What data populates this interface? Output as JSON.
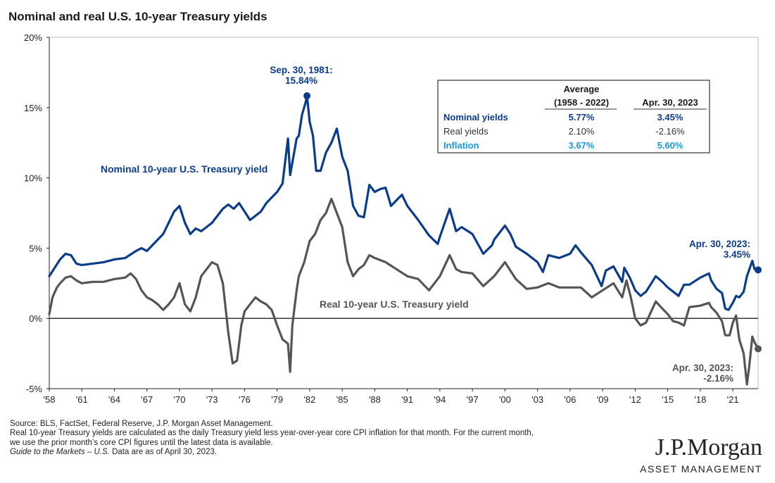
{
  "title": "Nominal and real U.S. 10-year Treasury yields",
  "colors": {
    "nominal": "#0b3c8c",
    "real": "#555555",
    "inflation": "#1a9ad6",
    "axis": "#222222"
  },
  "chart_data": {
    "type": "line",
    "title": "Nominal and real U.S. 10-year Treasury yields",
    "xlabel": "",
    "ylabel": "",
    "xlim": [
      1958,
      2023.33
    ],
    "ylim": [
      -5,
      20
    ],
    "grid": false,
    "y_ticks": [
      "-5%",
      "0%",
      "5%",
      "10%",
      "15%",
      "20%"
    ],
    "y_tick_values": [
      -5,
      0,
      5,
      10,
      15,
      20
    ],
    "x_ticks": [
      "'58",
      "'61",
      "'64",
      "'67",
      "'70",
      "'73",
      "'76",
      "'79",
      "'82",
      "'85",
      "'88",
      "'91",
      "'94",
      "'97",
      "'00",
      "'03",
      "'06",
      "'09",
      "'12",
      "'15",
      "'18",
      "'21"
    ],
    "x_tick_values": [
      1958,
      1961,
      1964,
      1967,
      1970,
      1973,
      1976,
      1979,
      1982,
      1985,
      1988,
      1991,
      1994,
      1997,
      2000,
      2003,
      2006,
      2009,
      2012,
      2015,
      2018,
      2021
    ],
    "series": [
      {
        "name": "Nominal 10-year U.S. Treasury yield",
        "x": [
          1958.0,
          1958.5,
          1959.0,
          1959.5,
          1960.0,
          1960.5,
          1961.0,
          1962.0,
          1963.0,
          1964.0,
          1965.0,
          1966.0,
          1966.5,
          1967.0,
          1968.0,
          1968.5,
          1969.0,
          1969.5,
          1970.0,
          1970.5,
          1971.0,
          1971.5,
          1972.0,
          1973.0,
          1973.5,
          1974.0,
          1974.5,
          1975.0,
          1975.5,
          1976.0,
          1976.5,
          1977.0,
          1977.5,
          1978.0,
          1978.5,
          1979.0,
          1979.5,
          1980.0,
          1980.2,
          1980.5,
          1980.8,
          1981.0,
          1981.3,
          1981.6,
          1981.75,
          1982.0,
          1982.3,
          1982.6,
          1983.0,
          1983.5,
          1984.0,
          1984.5,
          1985.0,
          1985.5,
          1986.0,
          1986.5,
          1987.0,
          1987.5,
          1988.0,
          1988.5,
          1989.0,
          1989.5,
          1990.0,
          1990.5,
          1991.0,
          1992.0,
          1993.0,
          1993.8,
          1994.0,
          1994.9,
          1995.5,
          1996.0,
          1997.0,
          1998.0,
          1998.8,
          1999.0,
          2000.0,
          2000.5,
          2001.0,
          2002.0,
          2003.0,
          2003.5,
          2004.0,
          2005.0,
          2006.0,
          2006.5,
          2007.0,
          2008.0,
          2008.9,
          2009.3,
          2010.0,
          2010.8,
          2011.0,
          2011.5,
          2012.0,
          2012.5,
          2013.0,
          2013.9,
          2014.5,
          2015.0,
          2016.0,
          2016.5,
          2017.0,
          2018.0,
          2018.8,
          2019.0,
          2019.5,
          2020.0,
          2020.3,
          2020.6,
          2021.0,
          2021.3,
          2021.6,
          2022.0,
          2022.3,
          2022.8,
          2023.0,
          2023.33
        ],
        "values": [
          3.0,
          3.6,
          4.2,
          4.6,
          4.5,
          3.9,
          3.8,
          3.9,
          4.0,
          4.2,
          4.3,
          4.8,
          5.0,
          4.8,
          5.6,
          6.0,
          6.8,
          7.6,
          8.0,
          6.8,
          6.0,
          6.4,
          6.2,
          6.8,
          7.3,
          7.8,
          8.1,
          7.8,
          8.2,
          7.6,
          7.0,
          7.3,
          7.6,
          8.2,
          8.6,
          9.0,
          9.6,
          12.8,
          10.2,
          11.5,
          12.8,
          13.0,
          14.5,
          15.3,
          15.84,
          14.0,
          13.0,
          10.5,
          10.5,
          11.8,
          12.5,
          13.5,
          11.5,
          10.5,
          8.0,
          7.3,
          7.2,
          9.5,
          9.0,
          9.2,
          9.3,
          8.0,
          8.4,
          8.8,
          8.0,
          7.0,
          5.9,
          5.3,
          5.8,
          7.8,
          6.2,
          6.5,
          6.0,
          4.6,
          5.2,
          5.6,
          6.6,
          6.0,
          5.1,
          4.6,
          4.0,
          3.3,
          4.5,
          4.3,
          4.6,
          5.2,
          4.7,
          3.8,
          2.3,
          3.4,
          3.7,
          2.6,
          3.6,
          2.9,
          2.0,
          1.6,
          1.9,
          3.0,
          2.6,
          2.2,
          1.6,
          2.4,
          2.4,
          2.9,
          3.2,
          2.7,
          2.1,
          1.8,
          0.7,
          0.6,
          1.1,
          1.6,
          1.5,
          1.9,
          3.0,
          4.1,
          3.5,
          3.45
        ]
      },
      {
        "name": "Real 10-year U.S. Treasury yield",
        "x": [
          1958.0,
          1958.3,
          1958.7,
          1959.0,
          1959.5,
          1960.0,
          1960.5,
          1961.0,
          1962.0,
          1963.0,
          1964.0,
          1965.0,
          1965.5,
          1966.0,
          1966.5,
          1967.0,
          1967.5,
          1968.0,
          1968.5,
          1969.0,
          1969.5,
          1970.0,
          1970.5,
          1971.0,
          1971.5,
          1972.0,
          1972.5,
          1973.0,
          1973.5,
          1974.0,
          1974.5,
          1974.9,
          1975.3,
          1975.7,
          1976.0,
          1976.5,
          1977.0,
          1977.5,
          1978.0,
          1978.5,
          1979.0,
          1979.5,
          1980.0,
          1980.2,
          1980.4,
          1980.8,
          1981.0,
          1981.5,
          1982.0,
          1982.5,
          1983.0,
          1983.5,
          1984.0,
          1984.5,
          1985.0,
          1985.5,
          1986.0,
          1986.5,
          1987.0,
          1987.5,
          1988.0,
          1989.0,
          1990.0,
          1991.0,
          1992.0,
          1993.0,
          1994.0,
          1994.9,
          1995.5,
          1996.0,
          1997.0,
          1998.0,
          1999.0,
          2000.0,
          2001.0,
          2002.0,
          2003.0,
          2004.0,
          2005.0,
          2006.0,
          2007.0,
          2008.0,
          2009.0,
          2010.0,
          2010.8,
          2011.2,
          2011.6,
          2012.0,
          2012.5,
          2013.0,
          2013.9,
          2014.5,
          2015.0,
          2015.5,
          2016.0,
          2016.5,
          2017.0,
          2018.0,
          2018.8,
          2019.0,
          2019.5,
          2020.0,
          2020.3,
          2020.7,
          2021.0,
          2021.3,
          2021.6,
          2022.0,
          2022.3,
          2022.5,
          2022.8,
          2023.0,
          2023.33
        ],
        "values": [
          0.3,
          1.5,
          2.2,
          2.5,
          2.9,
          3.0,
          2.7,
          2.5,
          2.6,
          2.6,
          2.8,
          2.9,
          3.2,
          2.8,
          2.0,
          1.5,
          1.3,
          1.0,
          0.6,
          1.0,
          1.5,
          2.5,
          1.0,
          0.5,
          1.5,
          3.0,
          3.5,
          4.0,
          3.8,
          2.5,
          -1.0,
          -3.2,
          -3.0,
          -0.5,
          0.5,
          1.0,
          1.5,
          1.2,
          1.0,
          0.6,
          -0.5,
          -1.5,
          -1.8,
          -3.8,
          -0.5,
          2.0,
          3.0,
          4.0,
          5.5,
          6.0,
          7.0,
          7.5,
          8.5,
          7.5,
          6.5,
          4.0,
          3.0,
          3.5,
          3.8,
          4.5,
          4.3,
          4.0,
          3.5,
          3.0,
          2.8,
          2.0,
          3.0,
          4.5,
          3.5,
          3.3,
          3.2,
          2.3,
          3.0,
          4.0,
          2.8,
          2.1,
          2.2,
          2.5,
          2.2,
          2.2,
          2.2,
          1.5,
          2.0,
          2.5,
          1.5,
          2.7,
          1.5,
          0.0,
          -0.5,
          -0.3,
          1.2,
          0.7,
          0.3,
          -0.2,
          -0.3,
          -0.5,
          0.8,
          0.9,
          1.1,
          0.8,
          0.4,
          -0.2,
          -1.2,
          -1.2,
          -0.3,
          0.2,
          -1.5,
          -2.5,
          -4.7,
          -3.5,
          -1.3,
          -1.7,
          -2.16
        ]
      }
    ],
    "annotations": [
      {
        "label": "Sep. 30, 1981: 15.84%",
        "x": 1981.75,
        "y": 15.84
      },
      {
        "label": "Apr. 30, 2023: 3.45%",
        "x": 2023.33,
        "y": 3.45
      },
      {
        "label": "Apr. 30, 2023: -2.16%",
        "x": 2023.33,
        "y": -2.16
      }
    ]
  },
  "labels": {
    "nominal_series": "Nominal  10-year U.S. Treasury yield",
    "real_series": "Real 10-year U.S. Treasury yield",
    "peak_date": "Sep. 30, 1981:",
    "peak_value": "15.84%",
    "nominal_end_date": "Apr. 30, 2023:",
    "nominal_end_value": "3.45%",
    "real_end_date": "Apr. 30, 2023:",
    "real_end_value": "-2.16%"
  },
  "summary_table": {
    "header_avg_1": "Average",
    "header_avg_2": "(1958 - 2022)",
    "header_current": "Apr. 30, 2023",
    "rows": [
      {
        "label": "Nominal yields",
        "avg": "5.77%",
        "current": "3.45%"
      },
      {
        "label": "Real yields",
        "avg": "2.10%",
        "current": "-2.16%"
      },
      {
        "label": "Inflation",
        "avg": "3.67%",
        "current": "5.60%"
      }
    ]
  },
  "footnotes": {
    "line1": "Source: BLS, FactSet, Federal Reserve, J.P. Morgan Asset Management.",
    "line2": "Real 10-year Treasury yields are calculated as the daily Treasury yield less year-over-year core CPI inflation for that month. For the current month,",
    "line3": "we use the prior month’s core CPI figures until the latest data is available.",
    "line4_italic": "Guide to the Markets – U.S.",
    "line4_rest": " Data are as of April 30, 2023."
  },
  "logo": {
    "wordmark": "J.P.Morgan",
    "subtitle": "ASSET MANAGEMENT"
  }
}
